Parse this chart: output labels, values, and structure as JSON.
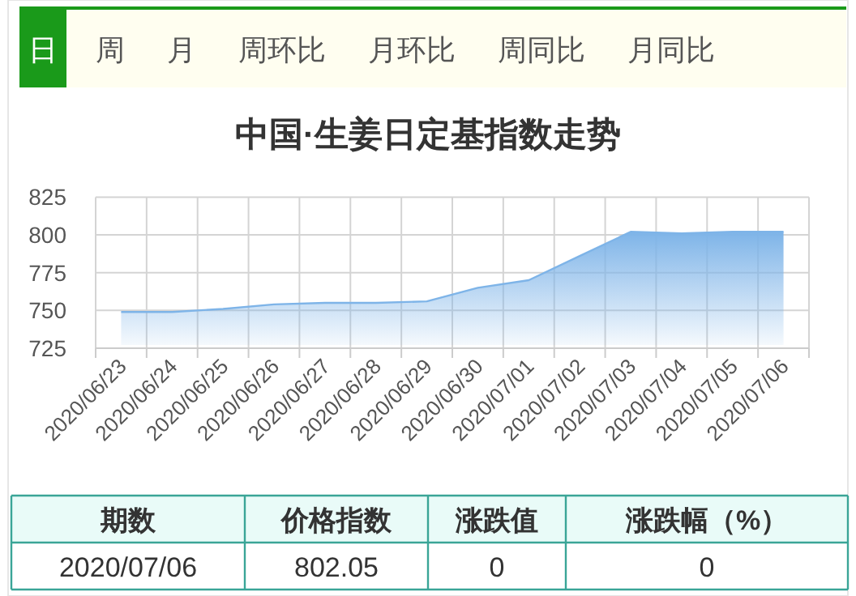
{
  "chart_data": [
    {
      "type": "other",
      "annotations": [
        "日",
        "周",
        "月",
        "周环比",
        "月环比",
        "周同比",
        "月同比"
      ]
    },
    {
      "type": "area",
      "title": "中国·生姜日定基指数走势",
      "categories": [
        "2020/06/23",
        "2020/06/24",
        "2020/06/25",
        "2020/06/26",
        "2020/06/27",
        "2020/06/28",
        "2020/06/29",
        "2020/06/30",
        "2020/07/01",
        "2020/07/02",
        "2020/07/03",
        "2020/07/04",
        "2020/07/05",
        "2020/07/06"
      ],
      "series": [
        {
          "color": "#7eb4e8",
          "values": [
            749,
            749,
            751,
            754,
            755,
            755,
            756,
            765,
            770,
            786,
            802,
            801,
            802,
            802
          ]
        }
      ],
      "ylim": [
        725,
        825
      ],
      "yticks": [
        725,
        750,
        775,
        800,
        825
      ],
      "grid": true,
      "marker": "none"
    },
    {
      "type": "other",
      "annotations": [
        "期数",
        "价格指数",
        "涨跌值",
        "涨跌幅（%）",
        "2020/07/06",
        "802.05",
        "0",
        "0"
      ]
    }
  ]
}
